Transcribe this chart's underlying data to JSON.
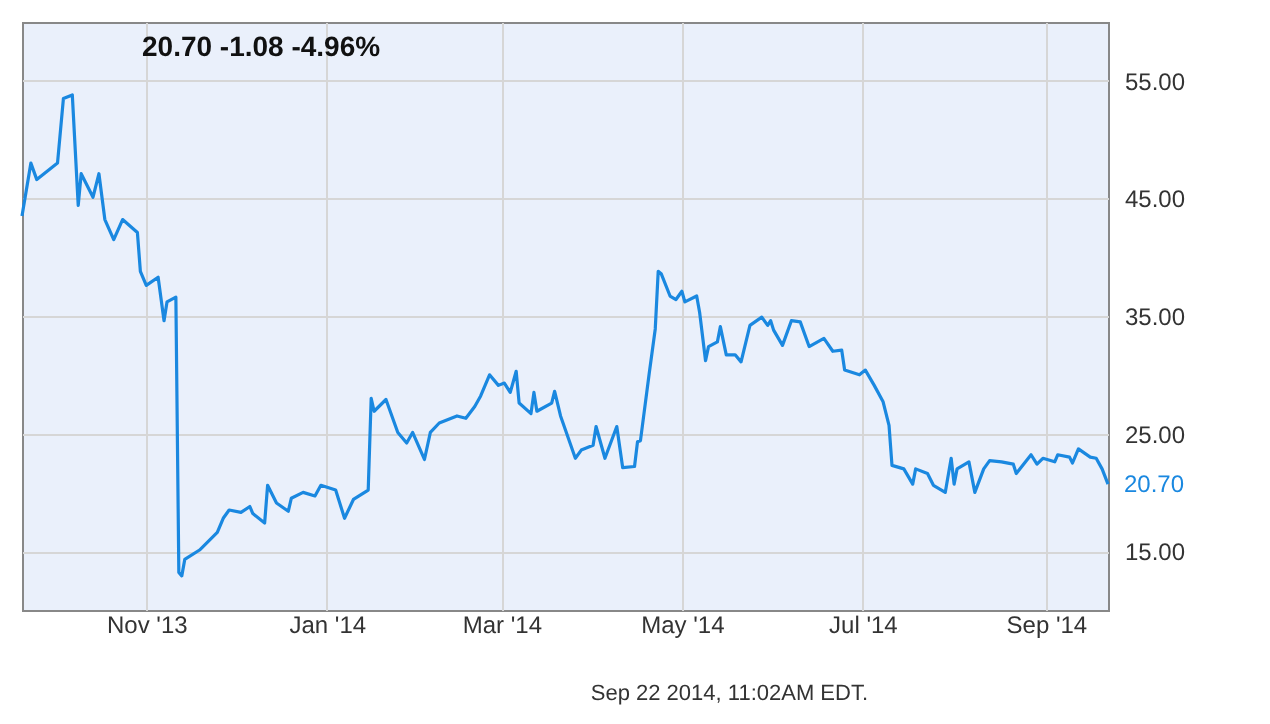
{
  "chart_data": {
    "type": "line",
    "title": "20.70  -1.08  -4.96%",
    "x": [
      "2013-09-20",
      "2013-09-23",
      "2013-09-25",
      "2013-10-02",
      "2013-10-04",
      "2013-10-07",
      "2013-10-09",
      "2013-10-10",
      "2013-10-14",
      "2013-10-16",
      "2013-10-18",
      "2013-10-21",
      "2013-10-24",
      "2013-10-29",
      "2013-10-30",
      "2013-11-01",
      "2013-11-05",
      "2013-11-07",
      "2013-11-08",
      "2013-11-11",
      "2013-11-12",
      "2013-11-13",
      "2013-11-14",
      "2013-11-19",
      "2013-11-25",
      "2013-11-27",
      "2013-11-29",
      "2013-12-03",
      "2013-12-06",
      "2013-12-07",
      "2013-12-11",
      "2013-12-12",
      "2013-12-15",
      "2013-12-19",
      "2013-12-20",
      "2013-12-24",
      "2013-12-28",
      "2013-12-30",
      "2014-01-04",
      "2014-01-07",
      "2014-01-10",
      "2014-01-15",
      "2014-01-16",
      "2014-01-17",
      "2014-01-21",
      "2014-01-25",
      "2014-01-28",
      "2014-01-30",
      "2014-02-03",
      "2014-02-05",
      "2014-02-08",
      "2014-02-11",
      "2014-02-14",
      "2014-02-17",
      "2014-02-20",
      "2014-02-22",
      "2014-02-25",
      "2014-02-28",
      "2014-03-02",
      "2014-03-04",
      "2014-03-06",
      "2014-03-07",
      "2014-03-11",
      "2014-03-12",
      "2014-03-13",
      "2014-03-18",
      "2014-03-19",
      "2014-03-21",
      "2014-03-26",
      "2014-03-28",
      "2014-04-01",
      "2014-04-02",
      "2014-04-05",
      "2014-04-09",
      "2014-04-11",
      "2014-04-15",
      "2014-04-16",
      "2014-04-17",
      "2014-04-20",
      "2014-04-22",
      "2014-04-23",
      "2014-04-24",
      "2014-04-27",
      "2014-04-29",
      "2014-05-01",
      "2014-05-02",
      "2014-05-06",
      "2014-05-07",
      "2014-05-09",
      "2014-05-10",
      "2014-05-13",
      "2014-05-14",
      "2014-05-16",
      "2014-05-19",
      "2014-05-21",
      "2014-05-24",
      "2014-05-28",
      "2014-05-30",
      "2014-05-31",
      "2014-06-01",
      "2014-06-04",
      "2014-06-07",
      "2014-06-10",
      "2014-06-13",
      "2014-06-18",
      "2014-06-21",
      "2014-06-24",
      "2014-06-25",
      "2014-06-30",
      "2014-07-02",
      "2014-07-05",
      "2014-07-08",
      "2014-07-10",
      "2014-07-11",
      "2014-07-15",
      "2014-07-18",
      "2014-07-19",
      "2014-07-23",
      "2014-07-25",
      "2014-07-29",
      "2014-07-31",
      "2014-08-01",
      "2014-08-02",
      "2014-08-06",
      "2014-08-08",
      "2014-08-11",
      "2014-08-13",
      "2014-08-17",
      "2014-08-21",
      "2014-08-22",
      "2014-08-27",
      "2014-08-29",
      "2014-08-31",
      "2014-09-04",
      "2014-09-05",
      "2014-09-09",
      "2014-09-10",
      "2014-09-12",
      "2014-09-16",
      "2014-09-18",
      "2014-09-20",
      "2014-09-22"
    ],
    "series": [
      {
        "color": "#1a88e0",
        "values": [
          43.5,
          48.0,
          46.6,
          48.0,
          53.5,
          53.8,
          44.4,
          47.1,
          45.1,
          47.1,
          43.2,
          41.5,
          43.2,
          42.1,
          38.8,
          37.6,
          38.3,
          34.6,
          36.2,
          36.6,
          13.2,
          12.9,
          14.3,
          15.1,
          16.6,
          17.8,
          18.5,
          18.3,
          18.8,
          18.2,
          17.4,
          20.6,
          19.1,
          18.4,
          19.5,
          20.0,
          19.7,
          20.6,
          20.2,
          17.8,
          19.4,
          20.2,
          28.0,
          26.9,
          27.9,
          25.1,
          24.2,
          25.1,
          22.8,
          25.1,
          25.9,
          26.2,
          26.5,
          26.3,
          27.3,
          28.2,
          30.0,
          29.1,
          29.3,
          28.5,
          30.3,
          27.6,
          26.7,
          28.5,
          26.9,
          27.6,
          28.6,
          26.5,
          22.9,
          23.6,
          24.0,
          25.6,
          22.9,
          25.6,
          22.1,
          22.2,
          24.3,
          24.4,
          30.2,
          33.9,
          38.8,
          38.6,
          36.7,
          36.4,
          37.1,
          36.2,
          36.7,
          35.3,
          31.2,
          32.4,
          32.8,
          34.1,
          31.7,
          31.7,
          31.1,
          34.2,
          34.9,
          34.2,
          34.6,
          33.8,
          32.5,
          34.6,
          34.5,
          32.4,
          33.1,
          32.0,
          32.1,
          30.4,
          30.0,
          30.4,
          29.1,
          27.7,
          25.7,
          22.3,
          22.0,
          20.7,
          22.0,
          21.6,
          20.6,
          20.0,
          22.9,
          20.7,
          22.0,
          22.6,
          20.0,
          22.0,
          22.7,
          22.6,
          22.4,
          21.6,
          23.2,
          22.4,
          22.9,
          22.6,
          23.2,
          23.0,
          22.5,
          23.7,
          23.0,
          22.9,
          22.0,
          20.7
        ]
      }
    ],
    "xlim": [
      "2013-09-20",
      "2014-09-22"
    ],
    "xticks": [
      {
        "value": "2013-11-01",
        "label": "Nov '13"
      },
      {
        "value": "2014-01-01",
        "label": "Jan '14"
      },
      {
        "value": "2014-03-01",
        "label": "Mar '14"
      },
      {
        "value": "2014-05-01",
        "label": "May '14"
      },
      {
        "value": "2014-07-01",
        "label": "Jul '14"
      },
      {
        "value": "2014-09-01",
        "label": "Sep '14"
      }
    ],
    "ylim": [
      10,
      60
    ],
    "yticks": [
      {
        "value": 15,
        "label": "15.00"
      },
      {
        "value": 25,
        "label": "25.00"
      },
      {
        "value": 35,
        "label": "35.00"
      },
      {
        "value": 45,
        "label": "45.00"
      },
      {
        "value": 55,
        "label": "55.00"
      }
    ],
    "grid": true,
    "annotations": [
      {
        "text": "20.70",
        "x": "2014-09-22",
        "y": 20.7
      },
      "Sep 22 2014, 11:02AM EDT."
    ]
  }
}
